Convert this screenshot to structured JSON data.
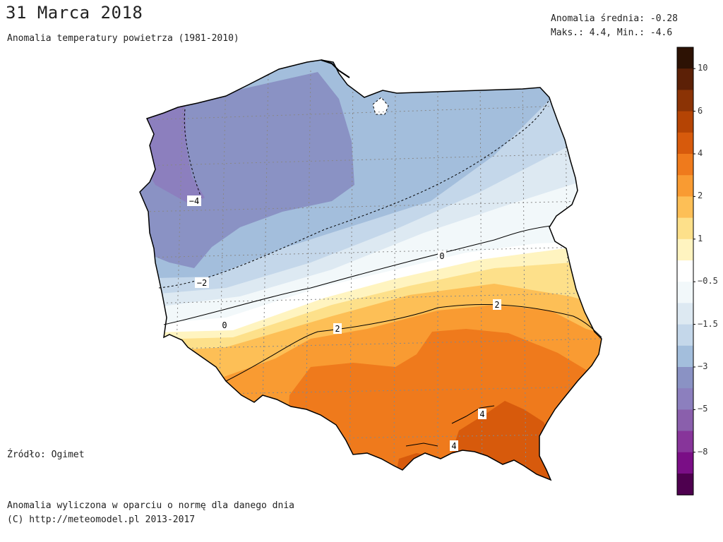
{
  "header": {
    "title": "31 Marca 2018",
    "subtitle": "Anomalia temperatury powietrza (1981-2010)"
  },
  "stats": {
    "mean": "Anomalia średnia: -0.28",
    "maxmin": "Maks.: 4.4, Min.: -4.6"
  },
  "source": "Źródło: Ogimet",
  "footer": {
    "line1": "Anomalia wyliczona w oparciu o normę dla danego dnia",
    "line2": "(C) http://meteomodel.pl 2013-2017"
  },
  "colorbar": {
    "colors": [
      "#2d1204",
      "#5c2006",
      "#8b3305",
      "#b54404",
      "#d75a0c",
      "#ef7a1c",
      "#f99b32",
      "#fdbf56",
      "#fde08a",
      "#fff4c0",
      "#ffffff",
      "#f2f8fa",
      "#dde9f2",
      "#c4d7ea",
      "#a3bedc",
      "#8a92c4",
      "#8c7fbe",
      "#8a5fac",
      "#87359a",
      "#7a0e86",
      "#4e004f"
    ],
    "labels": [
      {
        "text": "10",
        "index": 1
      },
      {
        "text": "6",
        "index": 3
      },
      {
        "text": "4",
        "index": 5
      },
      {
        "text": "2",
        "index": 7
      },
      {
        "text": "1",
        "index": 9
      },
      {
        "text": "−0.5",
        "index": 11
      },
      {
        "text": "−1.5",
        "index": 13
      },
      {
        "text": "−3",
        "index": 15
      },
      {
        "text": "−5",
        "index": 17
      },
      {
        "text": "−8",
        "index": 19
      }
    ]
  },
  "contour_labels": [
    {
      "text": "−4"
    },
    {
      "text": "−2"
    },
    {
      "text": "0"
    },
    {
      "text": "0"
    },
    {
      "text": "2"
    },
    {
      "text": "2"
    },
    {
      "text": "4"
    },
    {
      "text": "4"
    }
  ]
}
